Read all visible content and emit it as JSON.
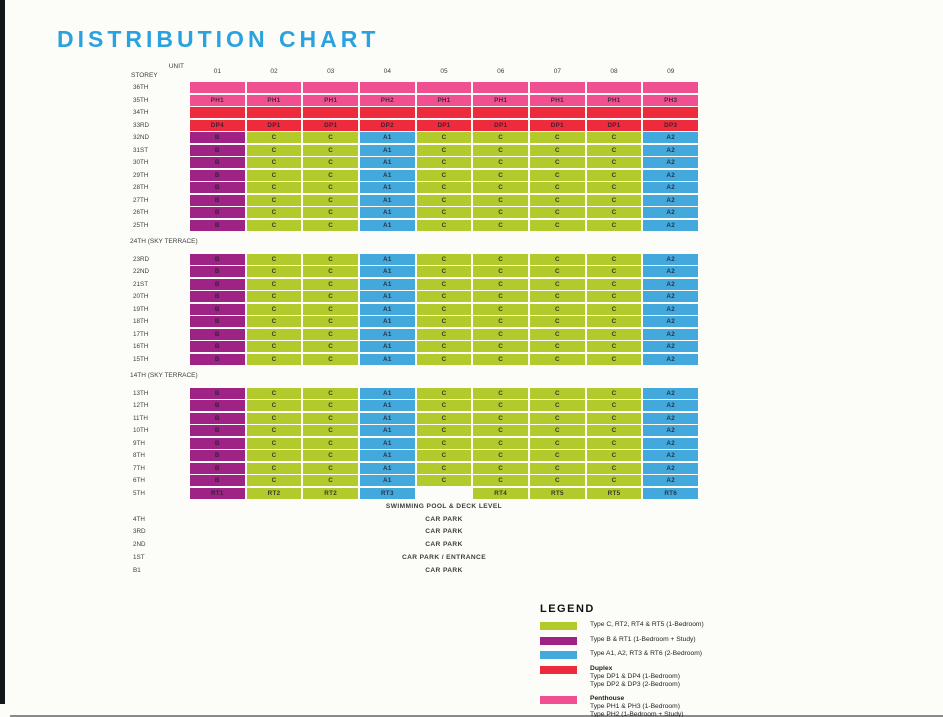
{
  "colors": {
    "accent_title": "#2aa2df",
    "page_background": "#fcfcf9"
  },
  "legend": {
    "title": "LEGEND",
    "items": [
      {
        "swatch": "gr",
        "lines": [
          "Type C, RT2, RT4 & RT5 (1-Bedroom)"
        ]
      },
      {
        "swatch": "pu",
        "lines": [
          "Type B & RT1 (1-Bedroom + Study)"
        ]
      },
      {
        "swatch": "bl",
        "lines": [
          "Type A1, A2, RT3 & RT6 (2-Bedroom)"
        ]
      },
      {
        "swatch": "rd",
        "heading": "Duplex",
        "lines": [
          "Type DP1 & DP4 (1-Bedroom)",
          "Type DP2 & DP3 (2-Bedroom)"
        ]
      },
      {
        "swatch": "ph",
        "heading": "Penthouse",
        "lines": [
          "Type PH1 & PH3 (1-Bedroom)",
          "Type PH2 (1-Bedroom + Study)"
        ]
      }
    ]
  },
  "chart_data": {
    "type": "table",
    "title": "DISTRIBUTION CHART",
    "unit_axis_label": "UNIT",
    "storey_axis_label": "STOREY",
    "legend_position": "bottom-right",
    "columns": [
      "01",
      "02",
      "03",
      "04",
      "05",
      "06",
      "07",
      "08",
      "09"
    ],
    "cell_types": {
      "ph": {
        "name": "penthouse",
        "color": "#f0508f"
      },
      "rd": {
        "name": "duplex",
        "color": "#ee2b3c"
      },
      "pu": {
        "name": "type-b-rt1",
        "color": "#9e2384"
      },
      "gr": {
        "name": "type-c-rt",
        "color": "#b3ca2c"
      },
      "bl": {
        "name": "type-a-rt",
        "color": "#43a9dd"
      }
    },
    "sections": [
      {
        "kind": "grid",
        "rows": [
          {
            "storey": "36TH",
            "cells": [
              "ph:",
              "ph:",
              "ph:",
              "ph:",
              "ph:",
              "ph:",
              "ph:",
              "ph:",
              "ph:"
            ]
          },
          {
            "storey": "35TH",
            "cells": [
              "ph:PH1",
              "ph:PH1",
              "ph:PH1",
              "ph:PH2",
              "ph:PH1",
              "ph:PH1",
              "ph:PH1",
              "ph:PH1",
              "ph:PH3"
            ]
          },
          {
            "storey": "34TH",
            "cells": [
              "rd:",
              "rd:",
              "rd:",
              "rd:",
              "rd:",
              "rd:",
              "rd:",
              "rd:",
              "rd:"
            ]
          },
          {
            "storey": "33RD",
            "cells": [
              "rd:DP4",
              "rd:DP1",
              "rd:DP1",
              "rd:DP2",
              "rd:DP1",
              "rd:DP1",
              "rd:DP1",
              "rd:DP1",
              "rd:DP3"
            ]
          },
          {
            "storey": "32ND",
            "cells": [
              "pu:B",
              "gr:C",
              "gr:C",
              "bl:A1",
              "gr:C",
              "gr:C",
              "gr:C",
              "gr:C",
              "bl:A2"
            ]
          },
          {
            "storey": "31ST",
            "cells": [
              "pu:B",
              "gr:C",
              "gr:C",
              "bl:A1",
              "gr:C",
              "gr:C",
              "gr:C",
              "gr:C",
              "bl:A2"
            ]
          },
          {
            "storey": "30TH",
            "cells": [
              "pu:B",
              "gr:C",
              "gr:C",
              "bl:A1",
              "gr:C",
              "gr:C",
              "gr:C",
              "gr:C",
              "bl:A2"
            ]
          },
          {
            "storey": "29TH",
            "cells": [
              "pu:B",
              "gr:C",
              "gr:C",
              "bl:A1",
              "gr:C",
              "gr:C",
              "gr:C",
              "gr:C",
              "bl:A2"
            ]
          },
          {
            "storey": "28TH",
            "cells": [
              "pu:B",
              "gr:C",
              "gr:C",
              "bl:A1",
              "gr:C",
              "gr:C",
              "gr:C",
              "gr:C",
              "bl:A2"
            ]
          },
          {
            "storey": "27TH",
            "cells": [
              "pu:B",
              "gr:C",
              "gr:C",
              "bl:A1",
              "gr:C",
              "gr:C",
              "gr:C",
              "gr:C",
              "bl:A2"
            ]
          },
          {
            "storey": "26TH",
            "cells": [
              "pu:B",
              "gr:C",
              "gr:C",
              "bl:A1",
              "gr:C",
              "gr:C",
              "gr:C",
              "gr:C",
              "bl:A2"
            ]
          },
          {
            "storey": "25TH",
            "cells": [
              "pu:B",
              "gr:C",
              "gr:C",
              "bl:A1",
              "gr:C",
              "gr:C",
              "gr:C",
              "gr:C",
              "bl:A2"
            ]
          }
        ]
      },
      {
        "kind": "label",
        "text": "24TH (SKY TERRACE)"
      },
      {
        "kind": "grid",
        "rows": [
          {
            "storey": "23RD",
            "cells": [
              "pu:B",
              "gr:C",
              "gr:C",
              "bl:A1",
              "gr:C",
              "gr:C",
              "gr:C",
              "gr:C",
              "bl:A2"
            ]
          },
          {
            "storey": "22ND",
            "cells": [
              "pu:B",
              "gr:C",
              "gr:C",
              "bl:A1",
              "gr:C",
              "gr:C",
              "gr:C",
              "gr:C",
              "bl:A2"
            ]
          },
          {
            "storey": "21ST",
            "cells": [
              "pu:B",
              "gr:C",
              "gr:C",
              "bl:A1",
              "gr:C",
              "gr:C",
              "gr:C",
              "gr:C",
              "bl:A2"
            ]
          },
          {
            "storey": "20TH",
            "cells": [
              "pu:B",
              "gr:C",
              "gr:C",
              "bl:A1",
              "gr:C",
              "gr:C",
              "gr:C",
              "gr:C",
              "bl:A2"
            ]
          },
          {
            "storey": "19TH",
            "cells": [
              "pu:B",
              "gr:C",
              "gr:C",
              "bl:A1",
              "gr:C",
              "gr:C",
              "gr:C",
              "gr:C",
              "bl:A2"
            ]
          },
          {
            "storey": "18TH",
            "cells": [
              "pu:B",
              "gr:C",
              "gr:C",
              "bl:A1",
              "gr:C",
              "gr:C",
              "gr:C",
              "gr:C",
              "bl:A2"
            ]
          },
          {
            "storey": "17TH",
            "cells": [
              "pu:B",
              "gr:C",
              "gr:C",
              "bl:A1",
              "gr:C",
              "gr:C",
              "gr:C",
              "gr:C",
              "bl:A2"
            ]
          },
          {
            "storey": "16TH",
            "cells": [
              "pu:B",
              "gr:C",
              "gr:C",
              "bl:A1",
              "gr:C",
              "gr:C",
              "gr:C",
              "gr:C",
              "bl:A2"
            ]
          },
          {
            "storey": "15TH",
            "cells": [
              "pu:B",
              "gr:C",
              "gr:C",
              "bl:A1",
              "gr:C",
              "gr:C",
              "gr:C",
              "gr:C",
              "bl:A2"
            ]
          }
        ]
      },
      {
        "kind": "label",
        "text": "14TH (SKY TERRACE)"
      },
      {
        "kind": "grid",
        "rows": [
          {
            "storey": "13TH",
            "cells": [
              "pu:B",
              "gr:C",
              "gr:C",
              "bl:A1",
              "gr:C",
              "gr:C",
              "gr:C",
              "gr:C",
              "bl:A2"
            ]
          },
          {
            "storey": "12TH",
            "cells": [
              "pu:B",
              "gr:C",
              "gr:C",
              "bl:A1",
              "gr:C",
              "gr:C",
              "gr:C",
              "gr:C",
              "bl:A2"
            ]
          },
          {
            "storey": "11TH",
            "cells": [
              "pu:B",
              "gr:C",
              "gr:C",
              "bl:A1",
              "gr:C",
              "gr:C",
              "gr:C",
              "gr:C",
              "bl:A2"
            ]
          },
          {
            "storey": "10TH",
            "cells": [
              "pu:B",
              "gr:C",
              "gr:C",
              "bl:A1",
              "gr:C",
              "gr:C",
              "gr:C",
              "gr:C",
              "bl:A2"
            ]
          },
          {
            "storey": "9TH",
            "cells": [
              "pu:B",
              "gr:C",
              "gr:C",
              "bl:A1",
              "gr:C",
              "gr:C",
              "gr:C",
              "gr:C",
              "bl:A2"
            ]
          },
          {
            "storey": "8TH",
            "cells": [
              "pu:B",
              "gr:C",
              "gr:C",
              "bl:A1",
              "gr:C",
              "gr:C",
              "gr:C",
              "gr:C",
              "bl:A2"
            ]
          },
          {
            "storey": "7TH",
            "cells": [
              "pu:B",
              "gr:C",
              "gr:C",
              "bl:A1",
              "gr:C",
              "gr:C",
              "gr:C",
              "gr:C",
              "bl:A2"
            ]
          },
          {
            "storey": "6TH",
            "cells": [
              "pu:B",
              "gr:C",
              "gr:C",
              "bl:A1",
              "gr:C",
              "gr:C",
              "gr:C",
              "gr:C",
              "bl:A2"
            ]
          },
          {
            "storey": "5TH",
            "cells": [
              "pu:RT1",
              "gr:RT2",
              "gr:RT2",
              "bl:RT3",
              "",
              "gr:RT4",
              "gr:RT5",
              "gr:RT5",
              "bl:RT6"
            ]
          }
        ]
      },
      {
        "kind": "textrows",
        "rows": [
          {
            "storey": "",
            "text": "SWIMMING POOL & DECK LEVEL"
          },
          {
            "storey": "4TH",
            "text": "CAR PARK"
          },
          {
            "storey": "3RD",
            "text": "CAR PARK"
          },
          {
            "storey": "2ND",
            "text": "CAR PARK"
          },
          {
            "storey": "1ST",
            "text": "CAR PARK / ENTRANCE"
          },
          {
            "storey": "B1",
            "text": "CAR PARK"
          }
        ]
      }
    ]
  }
}
